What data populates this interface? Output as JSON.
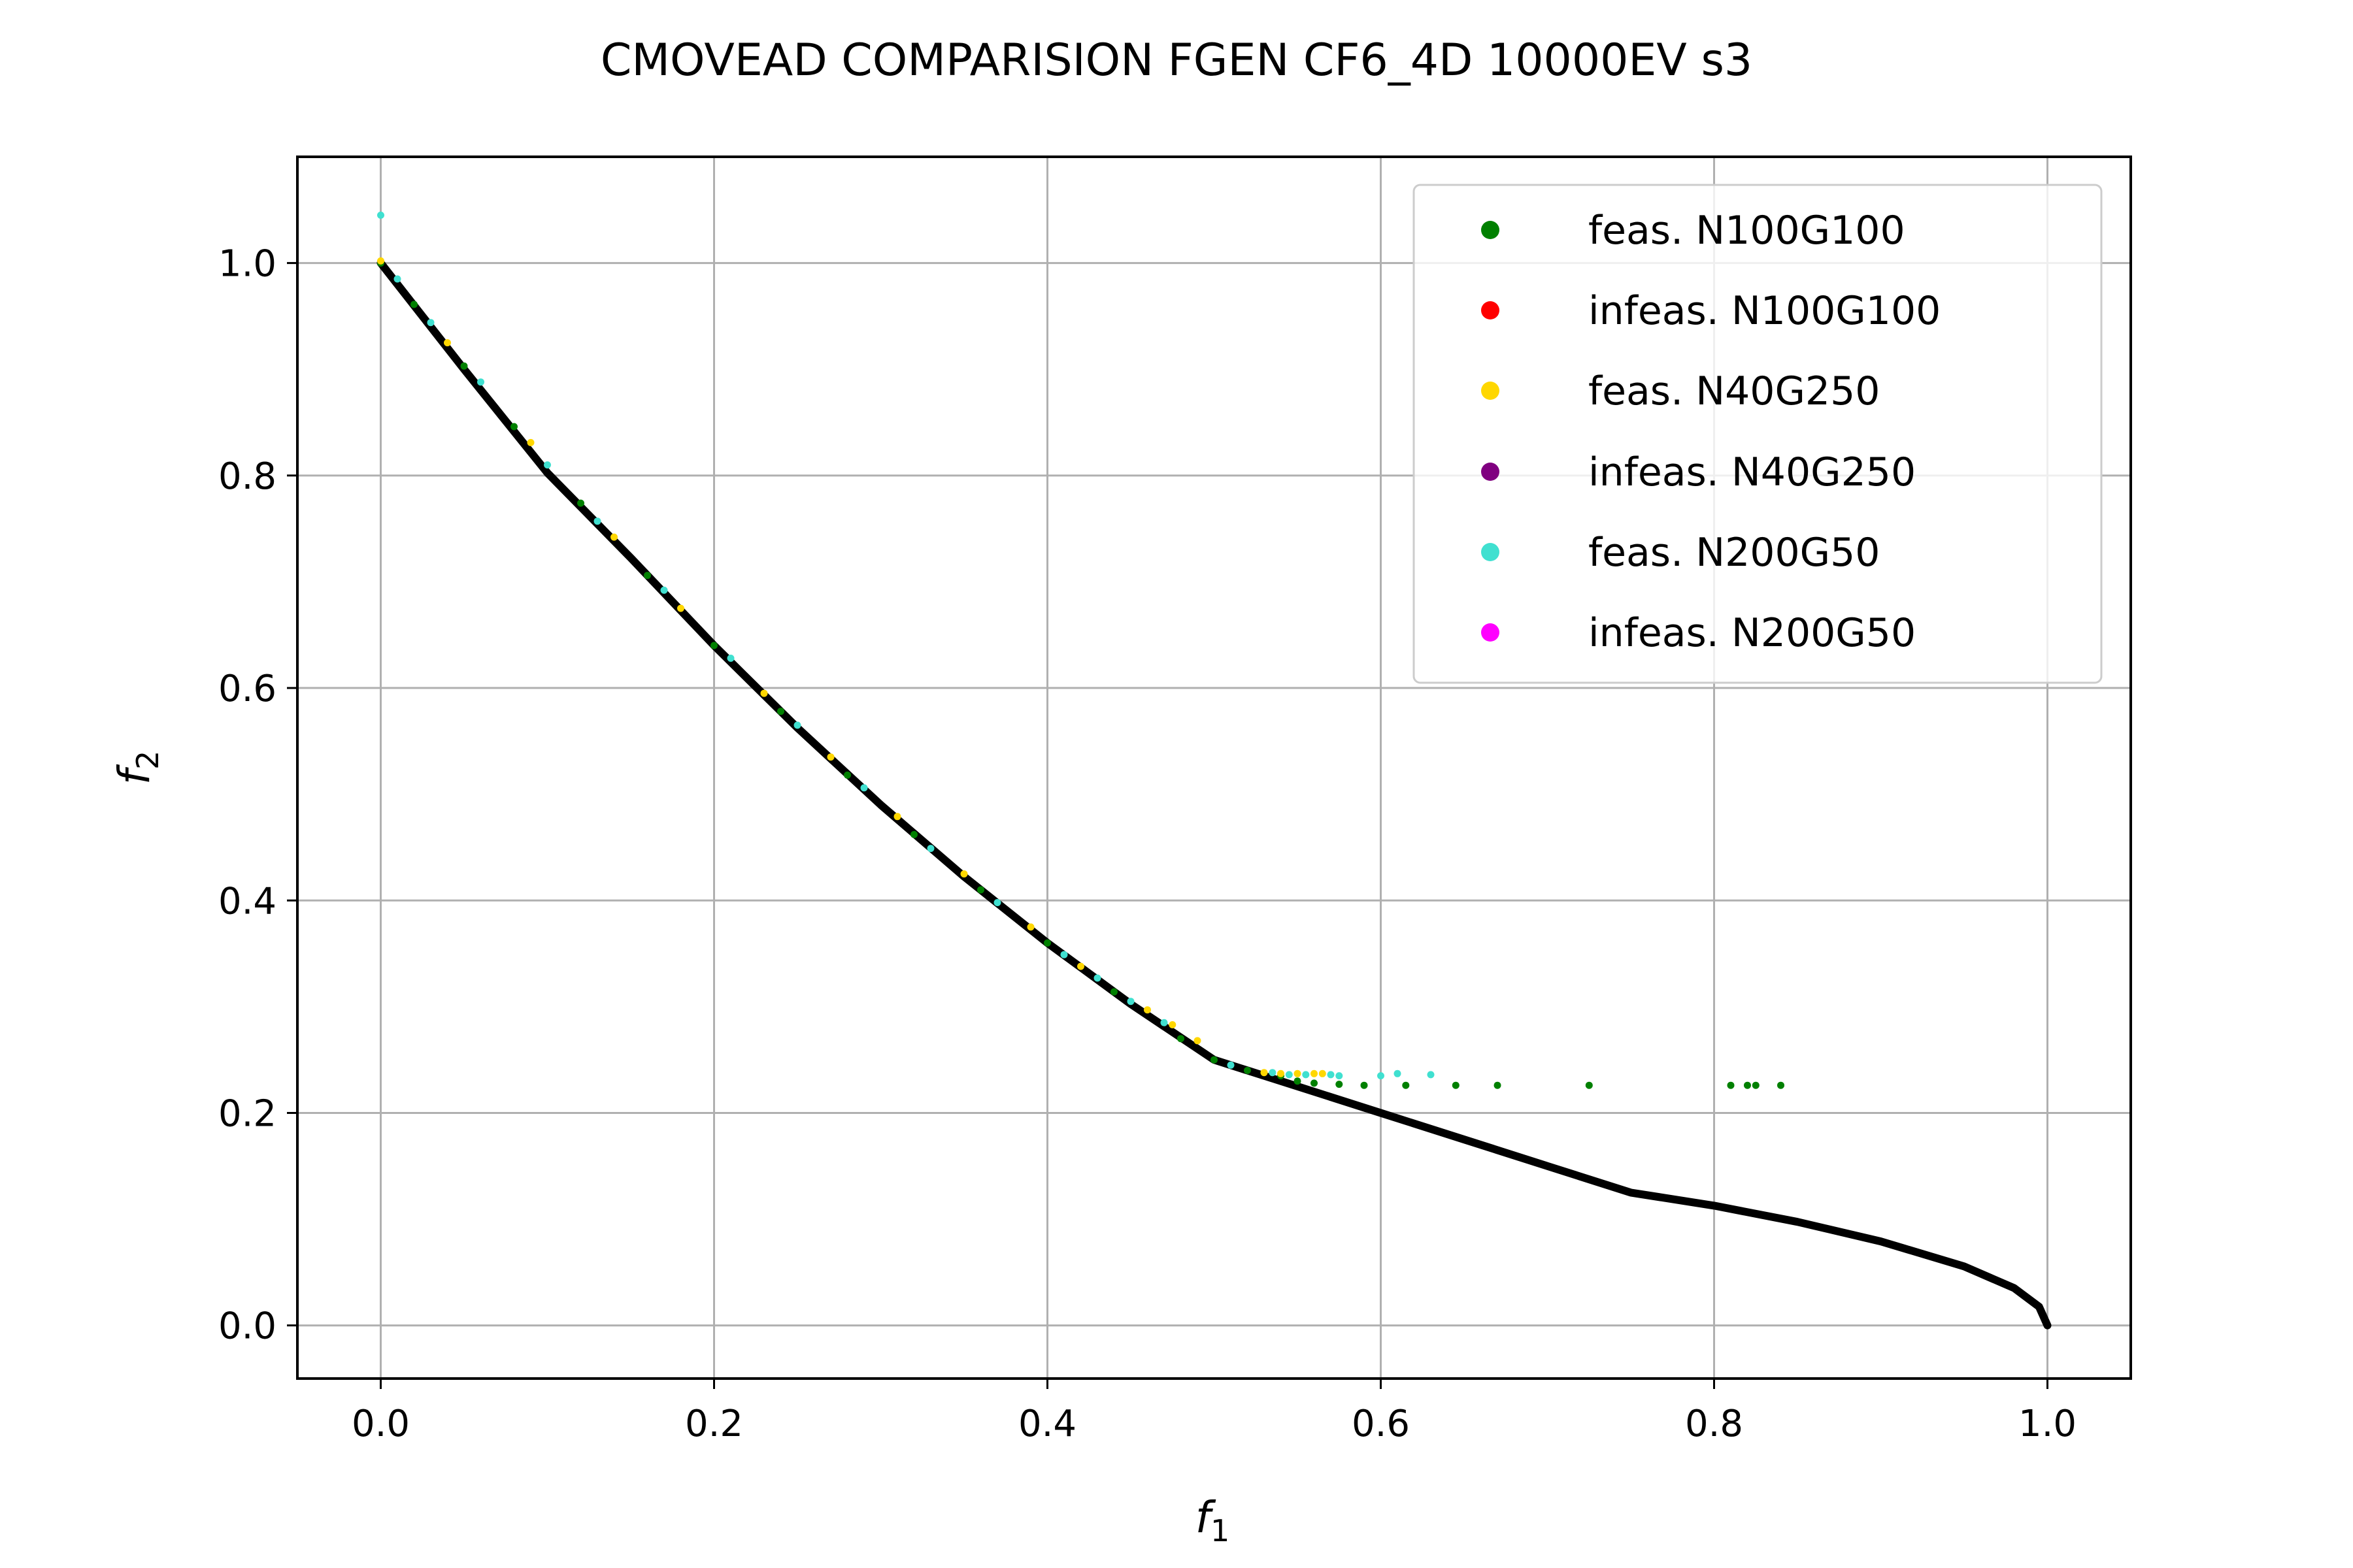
{
  "chart_data": {
    "type": "scatter",
    "title": "CMOVEAD COMPARISION FGEN CF6_4D 10000EV s3",
    "xlabel": "f",
    "xlabel_sub": "1",
    "ylabel": "f",
    "ylabel_sub": "2",
    "xlim": [
      -0.05,
      1.05
    ],
    "ylim": [
      -0.05,
      1.1
    ],
    "xticks": [
      0.0,
      0.2,
      0.4,
      0.6,
      0.8,
      1.0
    ],
    "xtick_labels": [
      "0.0",
      "0.2",
      "0.4",
      "0.6",
      "0.8",
      "1.0"
    ],
    "yticks": [
      0.0,
      0.2,
      0.4,
      0.6,
      0.8,
      1.0
    ],
    "ytick_labels": [
      "0.0",
      "0.2",
      "0.4",
      "0.6",
      "0.8",
      "1.0"
    ],
    "grid": true,
    "legend_position": "top-right",
    "reference_front": {
      "color": "#000000",
      "x": [
        0.0,
        0.05,
        0.1,
        0.15,
        0.2,
        0.25,
        0.3,
        0.35,
        0.4,
        0.45,
        0.5,
        0.55,
        0.6,
        0.65,
        0.7,
        0.75,
        0.8,
        0.85,
        0.9,
        0.95,
        0.98,
        0.995,
        1.0
      ],
      "y": [
        1.0,
        0.9,
        0.8025,
        0.7225,
        0.64,
        0.5625,
        0.49,
        0.4225,
        0.36,
        0.3025,
        0.25,
        0.225,
        0.2,
        0.175,
        0.15,
        0.125,
        0.1127,
        0.0975,
        0.0791,
        0.0555,
        0.0352,
        0.0176,
        0.0
      ]
    },
    "series": [
      {
        "name": "feas. N100G100",
        "color": "#008000",
        "x": [
          0.0,
          0.02,
          0.05,
          0.08,
          0.12,
          0.16,
          0.2,
          0.24,
          0.28,
          0.32,
          0.36,
          0.4,
          0.44,
          0.48,
          0.5,
          0.52,
          0.54,
          0.55,
          0.56,
          0.575,
          0.59,
          0.615,
          0.645,
          0.67,
          0.725,
          0.81,
          0.82,
          0.825,
          0.84
        ],
        "y": [
          1.0,
          0.961,
          0.903,
          0.846,
          0.774,
          0.706,
          0.64,
          0.578,
          0.518,
          0.462,
          0.41,
          0.36,
          0.314,
          0.27,
          0.25,
          0.24,
          0.235,
          0.23,
          0.228,
          0.227,
          0.226,
          0.226,
          0.226,
          0.226,
          0.226,
          0.226,
          0.226,
          0.226,
          0.226
        ]
      },
      {
        "name": "infeas. N100G100",
        "color": "#ff0000",
        "x": [],
        "y": []
      },
      {
        "name": "feas. N40G250",
        "color": "#ffd700",
        "x": [
          0.0,
          0.04,
          0.09,
          0.14,
          0.18,
          0.23,
          0.27,
          0.31,
          0.35,
          0.39,
          0.42,
          0.46,
          0.475,
          0.49,
          0.53,
          0.54,
          0.55,
          0.56,
          0.565
        ],
        "y": [
          1.002,
          0.925,
          0.831,
          0.742,
          0.675,
          0.595,
          0.535,
          0.479,
          0.425,
          0.375,
          0.338,
          0.297,
          0.283,
          0.268,
          0.238,
          0.237,
          0.237,
          0.237,
          0.237
        ]
      },
      {
        "name": "infeas. N40G250",
        "color": "#800080",
        "x": [],
        "y": []
      },
      {
        "name": "feas. N200G50",
        "color": "#40e0d0",
        "x": [
          0.0,
          0.01,
          0.03,
          0.06,
          0.1,
          0.13,
          0.17,
          0.21,
          0.25,
          0.29,
          0.33,
          0.37,
          0.41,
          0.43,
          0.45,
          0.47,
          0.51,
          0.535,
          0.545,
          0.555,
          0.57,
          0.575,
          0.6,
          0.61,
          0.63
        ],
        "y": [
          1.045,
          0.985,
          0.944,
          0.888,
          0.81,
          0.757,
          0.692,
          0.628,
          0.565,
          0.506,
          0.449,
          0.398,
          0.349,
          0.327,
          0.305,
          0.285,
          0.245,
          0.238,
          0.236,
          0.236,
          0.236,
          0.235,
          0.235,
          0.237,
          0.236
        ]
      },
      {
        "name": "infeas. N200G50",
        "color": "#ff00ff",
        "x": [],
        "y": []
      }
    ]
  }
}
